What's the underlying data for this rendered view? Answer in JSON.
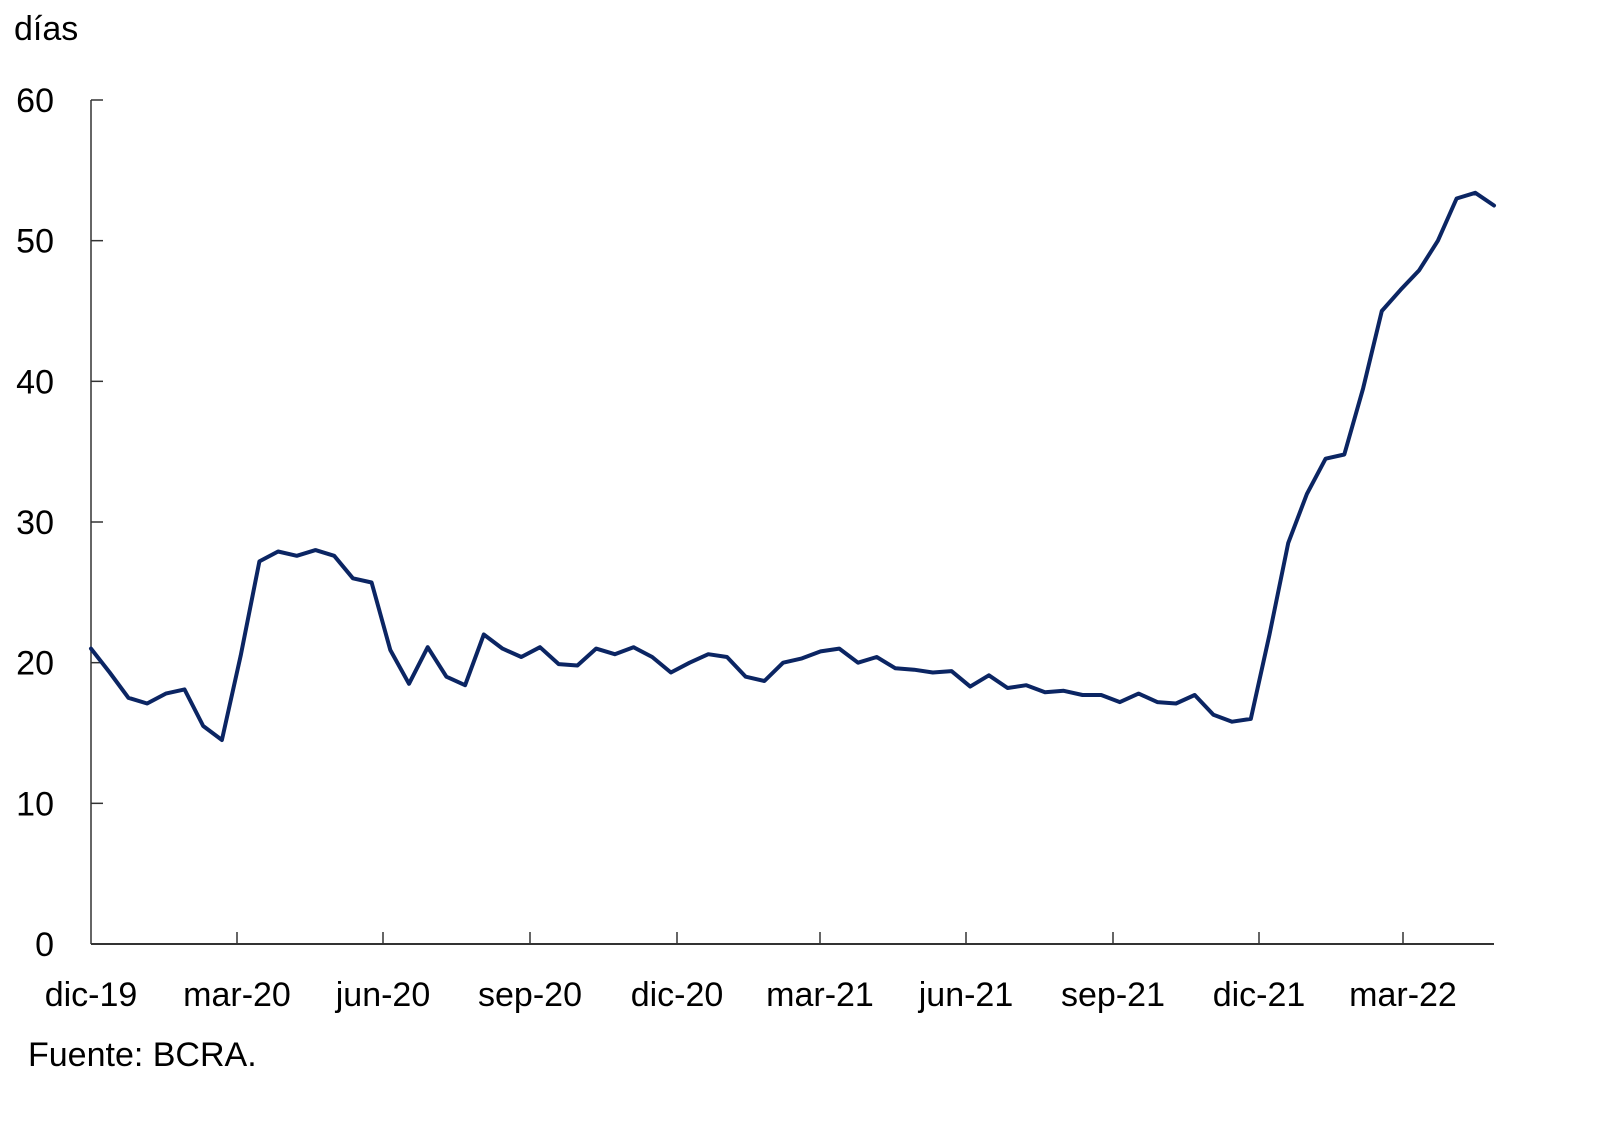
{
  "chart_data": {
    "type": "line",
    "title": "",
    "ylabel": "días",
    "xlabel": "",
    "ylim": [
      0,
      60
    ],
    "yticks": [
      0,
      10,
      20,
      30,
      40,
      50,
      60
    ],
    "grid": false,
    "legend": null,
    "line_color": "#0b2563",
    "x_tick_labels": [
      "dic-19",
      "mar-20",
      "jun-20",
      "sep-20",
      "dic-20",
      "mar-21",
      "jun-21",
      "sep-21",
      "dic-21",
      "mar-22"
    ],
    "x_range": [
      "dic-19",
      "may-22"
    ],
    "series": [
      {
        "name": "días",
        "points": [
          [
            "dic-19",
            21.0
          ],
          [
            "dic-19 (2ª quincena)",
            19.3
          ],
          [
            "ene-20",
            17.5
          ],
          [
            "ene-20 (2ª quincena)",
            17.1
          ],
          [
            "ene-20 (fin)",
            17.8
          ],
          [
            "feb-20",
            18.1
          ],
          [
            "feb-20 (mitad)",
            15.5
          ],
          [
            "feb-20 (fin)",
            14.5
          ],
          [
            "mar-20 (inicio)",
            20.5
          ],
          [
            "mar-20 (temprano)",
            27.2
          ],
          [
            "mar-20",
            27.9
          ],
          [
            "mar-20 (2ª quincena)",
            27.6
          ],
          [
            "abr-20",
            28.0
          ],
          [
            "abr-20 (2ª quincena)",
            27.6
          ],
          [
            "may-20",
            26.0
          ],
          [
            "may-20 (mitad)",
            25.7
          ],
          [
            "may-20 (fin)",
            20.9
          ],
          [
            "may-20 (cierre)",
            18.5
          ],
          [
            "jun-20 (previo)",
            21.1
          ],
          [
            "jun-20 (previo 2)",
            19.0
          ],
          [
            "jun-20",
            18.4
          ],
          [
            "jun-20 (mitad)",
            22.0
          ],
          [
            "jun-20 (fin)",
            21.0
          ],
          [
            "jul-20",
            20.4
          ],
          [
            "jul-20 (mitad)",
            21.1
          ],
          [
            "jul-20 (fin)",
            19.9
          ],
          [
            "ago-20",
            19.8
          ],
          [
            "ago-20 (mitad)",
            21.0
          ],
          [
            "sep-20",
            20.6
          ],
          [
            "sep-20 (mitad)",
            21.1
          ],
          [
            "sep-20 (fin)",
            20.4
          ],
          [
            "oct-20",
            19.3
          ],
          [
            "oct-20 (mitad)",
            20.0
          ],
          [
            "nov-20",
            20.6
          ],
          [
            "nov-20 (mitad)",
            20.4
          ],
          [
            "dic-20",
            19.0
          ],
          [
            "dic-20 (fin)",
            18.7
          ],
          [
            "ene-21",
            20.0
          ],
          [
            "ene-21 (fin)",
            20.3
          ],
          [
            "feb-21",
            20.8
          ],
          [
            "feb-21 (mitad)",
            21.0
          ],
          [
            "mar-21",
            20.0
          ],
          [
            "mar-21 (mitad)",
            20.4
          ],
          [
            "abr-21",
            19.6
          ],
          [
            "abr-21 (fin)",
            19.5
          ],
          [
            "may-21",
            19.3
          ],
          [
            "may-21 (fin)",
            19.4
          ],
          [
            "jun-21",
            18.3
          ],
          [
            "jun-21 (fin)",
            19.1
          ],
          [
            "jul-21",
            18.2
          ],
          [
            "jul-21 (fin)",
            18.4
          ],
          [
            "ago-21",
            17.9
          ],
          [
            "ago-21 (fin)",
            18.0
          ],
          [
            "sep-21",
            17.7
          ],
          [
            "sep-21 (fin)",
            17.7
          ],
          [
            "oct-21",
            17.2
          ],
          [
            "oct-21 (fin)",
            17.8
          ],
          [
            "nov-21",
            17.2
          ],
          [
            "nov-21 (fin)",
            17.1
          ],
          [
            "dic-21",
            17.7
          ],
          [
            "dic-21 (fin)",
            16.3
          ],
          [
            "ene-22 (inicio)",
            15.8
          ],
          [
            "ene-22",
            16.0
          ],
          [
            "ene-22 (mitad)",
            22.0
          ],
          [
            "ene-22 (fin)",
            28.5
          ],
          [
            "feb-22",
            32.0
          ],
          [
            "feb-22 (mitad)",
            34.5
          ],
          [
            "feb-22 (fin)",
            34.8
          ],
          [
            "mar-22",
            39.5
          ],
          [
            "mar-22 (mitad)",
            45.0
          ],
          [
            "mar-22 (fin)",
            46.5
          ],
          [
            "abr-22",
            47.9
          ],
          [
            "abr-22 (mitad)",
            50.0
          ],
          [
            "abr-22 (fin)",
            53.0
          ],
          [
            "may-22",
            53.4
          ],
          [
            "may-22 (fin)",
            52.5
          ]
        ]
      }
    ]
  },
  "labels": {
    "unit": "días",
    "source": "Fuente: BCRA."
  }
}
